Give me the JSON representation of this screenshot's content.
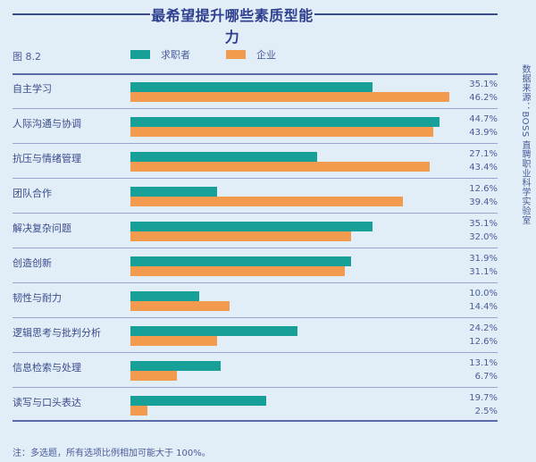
{
  "header": {
    "title": "最希望提升哪些素质型能力",
    "figure_label": "图 8.2"
  },
  "legend": [
    {
      "label": "求职者",
      "color": "#17a098"
    },
    {
      "label": "企业",
      "color": "#f29a4d"
    }
  ],
  "source": "数据来源：BOSS 直聘职业科学实验室",
  "note": "注：多选题，所有选项比例相加可能大于 100%。",
  "rows": [
    {
      "label": "自主学习",
      "seeker": "35.1%",
      "company": "46.2%"
    },
    {
      "label": "人际沟通与协调",
      "seeker": "44.7%",
      "company": "43.9%"
    },
    {
      "label": "抗压与情绪管理",
      "seeker": "27.1%",
      "company": "43.4%"
    },
    {
      "label": "团队合作",
      "seeker": "12.6%",
      "company": "39.4%"
    },
    {
      "label": "解决复杂问题",
      "seeker": "35.1%",
      "company": "32.0%"
    },
    {
      "label": "创造创新",
      "seeker": "31.9%",
      "company": "31.1%"
    },
    {
      "label": "韧性与耐力",
      "seeker": "10.0%",
      "company": "14.4%"
    },
    {
      "label": "逻辑思考与批判分析",
      "seeker": "24.2%",
      "company": "12.6%"
    },
    {
      "label": "信息检索与处理",
      "seeker": "13.1%",
      "company": "6.7%"
    },
    {
      "label": "读写与口头表达",
      "seeker": "19.7%",
      "company": "2.5%"
    }
  ],
  "chart_data": {
    "type": "bar",
    "orientation": "horizontal",
    "title": "最希望提升哪些素质型能力",
    "subtitle": "图 8.2",
    "categories": [
      "自主学习",
      "人际沟通与协调",
      "抗压与情绪管理",
      "团队合作",
      "解决复杂问题",
      "创造创新",
      "韧性与耐力",
      "逻辑思考与批判分析",
      "信息检索与处理",
      "读写与口头表达"
    ],
    "series": [
      {
        "name": "求职者",
        "color": "#17a098",
        "values": [
          35.1,
          44.7,
          27.1,
          12.6,
          35.1,
          31.9,
          10.0,
          24.2,
          13.1,
          19.7
        ]
      },
      {
        "name": "企业",
        "color": "#f29a4d",
        "values": [
          46.2,
          43.9,
          43.4,
          39.4,
          32.0,
          31.1,
          14.4,
          12.6,
          6.7,
          2.5
        ]
      }
    ],
    "unit": "%",
    "xlabel": "",
    "ylabel": "",
    "grid": false,
    "legend_position": "top",
    "data_labels": true,
    "annotations": [
      "数据来源：BOSS 直聘职业科学实验室",
      "注：多选题，所有选项比例相加可能大于 100%。"
    ]
  }
}
